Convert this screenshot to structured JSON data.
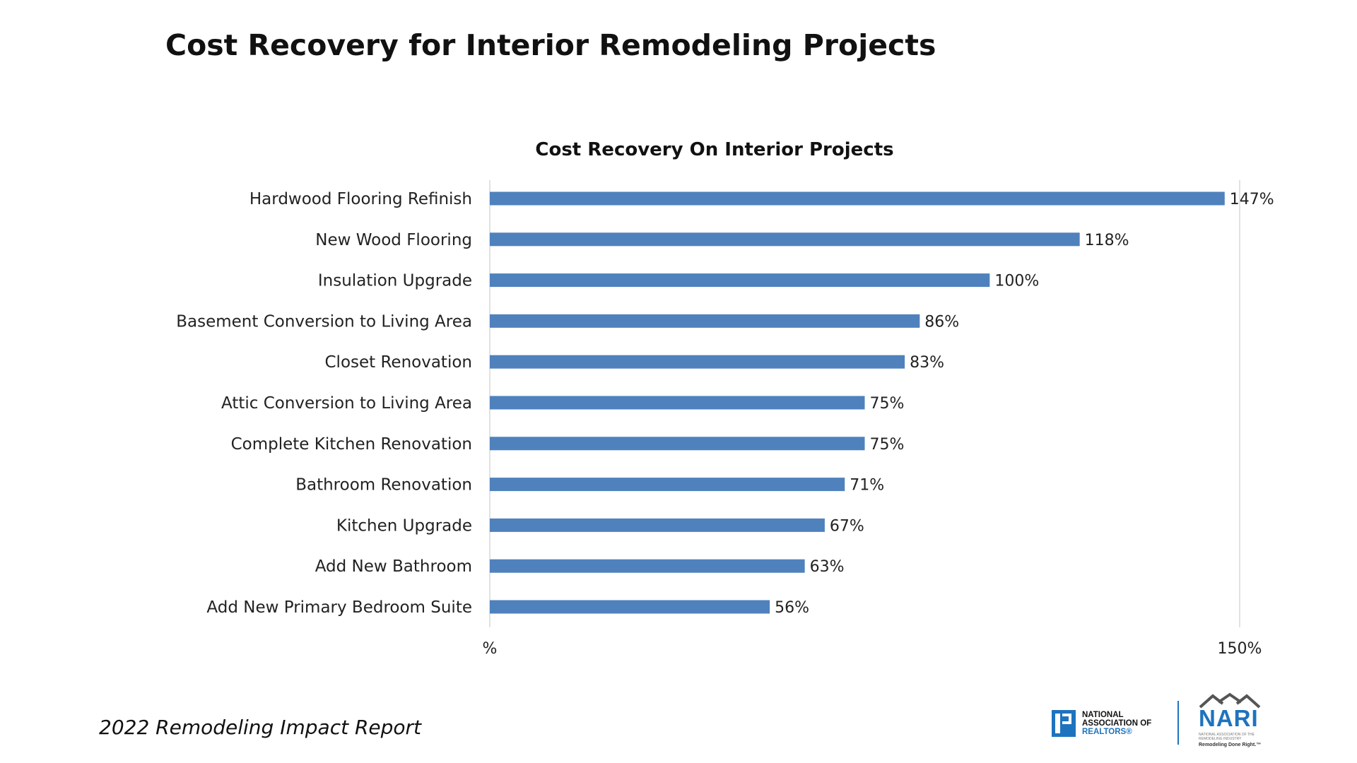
{
  "slide": {
    "title": "Cost Recovery for Interior Remodeling Projects",
    "footer": "2022 Remodeling Impact Report"
  },
  "logos": {
    "nar": {
      "line1": "NATIONAL",
      "line2": "ASSOCIATION OF",
      "line3": "REALTORS®"
    },
    "nari": {
      "name": "NARI",
      "subtitle": "NATIONAL ASSOCIATION OF THE REMODELING INDUSTRY",
      "tagline": "Remodeling Done Right.™"
    }
  },
  "colors": {
    "bar": "#4f81bd",
    "gridline": "#d9d9d9",
    "brand_blue": "#1e73be"
  },
  "chart_data": {
    "type": "bar",
    "orientation": "horizontal",
    "title": "Cost Recovery On Interior Projects",
    "categories": [
      "Hardwood Flooring Refinish",
      "New Wood Flooring",
      "Insulation Upgrade",
      "Basement Conversion to Living Area",
      "Closet Renovation",
      "Attic Conversion to Living Area",
      "Complete Kitchen Renovation",
      "Bathroom Renovation",
      "Kitchen Upgrade",
      "Add New Bathroom",
      "Add New Primary Bedroom Suite"
    ],
    "values": [
      147,
      118,
      100,
      86,
      83,
      75,
      75,
      71,
      67,
      63,
      56
    ],
    "value_labels": [
      "147%",
      "118%",
      "100%",
      "86%",
      "83%",
      "75%",
      "75%",
      "71%",
      "67%",
      "63%",
      "56%"
    ],
    "xlim": [
      0,
      150
    ],
    "tick_labels": [
      "%",
      "150%"
    ],
    "xlabel": "",
    "ylabel": "",
    "grid": true,
    "legend": false
  }
}
